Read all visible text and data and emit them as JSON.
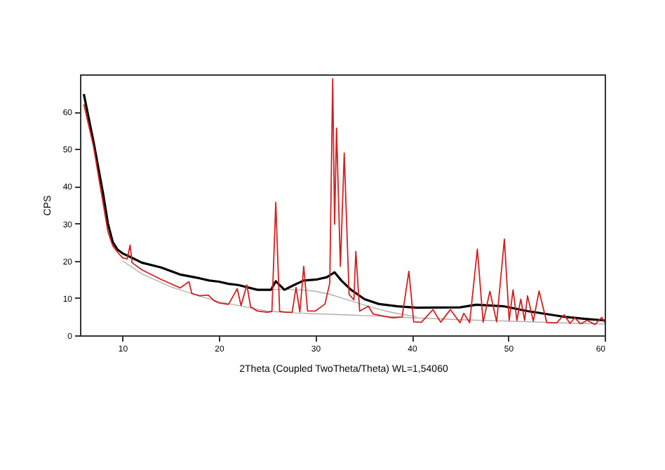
{
  "chart_data": {
    "type": "line",
    "xlabel": "2Theta (Coupled TwoTheta/Theta) WL=1,54060",
    "ylabel": "CPS",
    "xlim": [
      5.6,
      60
    ],
    "ylim": [
      0,
      70
    ],
    "xticks": [
      10,
      20,
      30,
      40,
      50,
      60
    ],
    "yticks": [
      0,
      10,
      20,
      30,
      40,
      50,
      60
    ],
    "grid": false,
    "marker": "none",
    "line_style": "solid",
    "series": [
      {
        "color": "#b0b0b0",
        "x": [
          10,
          12,
          15,
          18,
          20,
          23,
          25,
          28,
          30,
          33,
          35,
          38,
          40,
          45,
          50,
          55,
          60
        ],
        "values": [
          20,
          16.5,
          13,
          10.5,
          9,
          7.5,
          6.5,
          6,
          5.8,
          5.5,
          5.3,
          5,
          4.7,
          4.2,
          3.8,
          3.4,
          3
        ]
      },
      {
        "color": "#b0b0b0",
        "x": [
          24,
          25.5,
          27,
          28.5,
          30,
          31.5,
          33,
          34.5,
          36,
          37.5,
          39,
          40.5
        ],
        "values": [
          12.2,
          12.3,
          12.3,
          12.2,
          11.8,
          11,
          9.8,
          8.6,
          7.4,
          6.4,
          5.6,
          5
        ]
      },
      {
        "color": "#000000",
        "x": [
          6,
          7,
          8,
          8.5,
          9,
          9.5,
          10,
          11,
          12,
          14,
          16,
          18,
          19,
          20,
          21,
          22,
          24,
          25.4,
          25.9,
          26.8,
          27.8,
          28.8,
          30.2,
          31.2,
          32,
          32.7,
          33.7,
          35.1,
          36.6,
          38.5,
          40.5,
          45,
          46.7,
          49.5,
          52,
          54,
          56,
          58,
          60
        ],
        "values": [
          64.7,
          52,
          38,
          30,
          25,
          23,
          22,
          20.8,
          19.5,
          18.2,
          16.3,
          15.3,
          14.7,
          14.4,
          13.8,
          13.5,
          12.2,
          12.2,
          14.5,
          12.2,
          13.5,
          14.7,
          15,
          15.6,
          16.9,
          14.7,
          12.2,
          9.7,
          8.4,
          7.8,
          7.4,
          7.5,
          8.2,
          7.8,
          6.5,
          5.7,
          4.9,
          4.4,
          4
        ]
      },
      {
        "color": "#d42020",
        "x": [
          6,
          7,
          8,
          8.5,
          9,
          9.5,
          10,
          10.5,
          10.8,
          11,
          12,
          14,
          16,
          16.9,
          17.2,
          18,
          18.9,
          19.5,
          20,
          21,
          21.9,
          22.3,
          22.9,
          23.3,
          24,
          25,
          25.5,
          25.9,
          26.3,
          27,
          27.6,
          28,
          28.4,
          28.8,
          29.2,
          30,
          31,
          31.5,
          31.8,
          32,
          32.2,
          32.6,
          33,
          33.5,
          34,
          34.2,
          34.6,
          35.5,
          36,
          38,
          39,
          39.7,
          40.2,
          41,
          42.2,
          43,
          44,
          45,
          45.4,
          46,
          46.8,
          47.4,
          48.1,
          48.8,
          49.6,
          50.1,
          50.5,
          50.9,
          51.3,
          51.7,
          52,
          52.6,
          53.2,
          54,
          55,
          55.8,
          56.4,
          56.9,
          57.5,
          58.2,
          59,
          59.7,
          60
        ],
        "values": [
          62,
          50.7,
          35.4,
          27.8,
          24,
          22.3,
          20.8,
          20.5,
          24.2,
          19.5,
          17.6,
          15,
          12.7,
          14.4,
          11.2,
          10.6,
          10.8,
          9.3,
          8.7,
          8.3,
          12.5,
          8,
          13.5,
          7.6,
          6.5,
          6.2,
          6.4,
          35.7,
          6.4,
          6.2,
          6.2,
          12.8,
          6.3,
          18.5,
          6.5,
          6.5,
          8.4,
          14,
          68.8,
          29.8,
          55.6,
          18.5,
          48.9,
          11,
          9.5,
          22.5,
          6.5,
          7.8,
          5.7,
          4.7,
          4.9,
          17.2,
          3.6,
          3.5,
          6.9,
          3.5,
          6.9,
          3.4,
          5.9,
          3.4,
          23.1,
          3.5,
          11.8,
          3.6,
          25.8,
          4,
          12.2,
          4,
          9.7,
          4,
          10.6,
          3.8,
          11.9,
          3.4,
          3.3,
          5.5,
          3.2,
          4.7,
          3.1,
          4,
          2.9,
          4.8,
          3.4
        ]
      }
    ]
  }
}
